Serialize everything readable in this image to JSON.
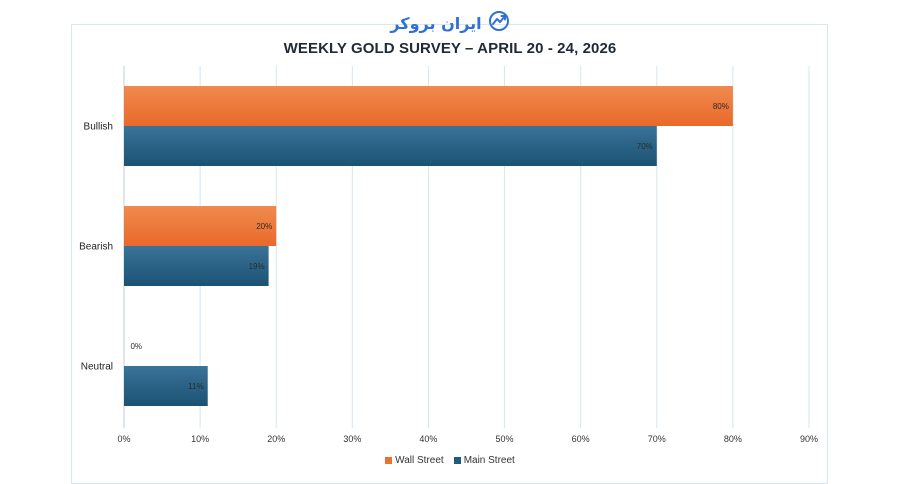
{
  "header": {
    "brand_name": "ایران بروکر",
    "logo_icon": "chart-trend-icon",
    "brand_color": "#2f6fd6"
  },
  "chart_data": {
    "type": "bar",
    "orientation": "horizontal",
    "title": "WEEKLY GOLD SURVEY – APRIL 20 - 24, 2026",
    "categories": [
      "Bullish",
      "Bearish",
      "Neutral"
    ],
    "series": [
      {
        "name": "Wall Street",
        "values": [
          80,
          20,
          0
        ],
        "labels": [
          "80%",
          "20%",
          "0%"
        ],
        "color": "#ec7130"
      },
      {
        "name": "Main Street",
        "values": [
          70,
          19,
          11
        ],
        "labels": [
          "70%",
          "19%",
          "11%"
        ],
        "color": "#1f5a7f"
      }
    ],
    "xlim": [
      0,
      90
    ],
    "xticks": [
      "0%",
      "10%",
      "20%",
      "30%",
      "40%",
      "50%",
      "60%",
      "70%",
      "80%",
      "90%"
    ],
    "grid": true,
    "legend_position": "bottom"
  }
}
